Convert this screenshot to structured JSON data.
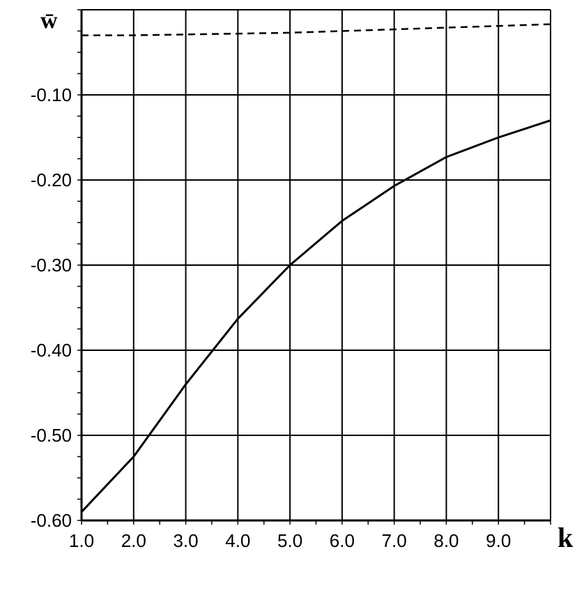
{
  "chart_data": {
    "type": "line",
    "title": "",
    "xlabel": "k",
    "ylabel": "w̄",
    "xlim": [
      1.0,
      10.0
    ],
    "ylim": [
      -0.6,
      0.0
    ],
    "grid": true,
    "legend": "none",
    "x_ticks": [
      {
        "value": 1.0,
        "label": "1.0"
      },
      {
        "value": 2.0,
        "label": "2.0"
      },
      {
        "value": 3.0,
        "label": "3.0"
      },
      {
        "value": 4.0,
        "label": "4.0"
      },
      {
        "value": 5.0,
        "label": "5.0"
      },
      {
        "value": 6.0,
        "label": "6.0"
      },
      {
        "value": 7.0,
        "label": "7.0"
      },
      {
        "value": 8.0,
        "label": "8.0"
      },
      {
        "value": 9.0,
        "label": "9.0"
      }
    ],
    "y_ticks": [
      {
        "value": -0.1,
        "label": "-0.10"
      },
      {
        "value": -0.2,
        "label": "-0.20"
      },
      {
        "value": -0.3,
        "label": "-0.30"
      },
      {
        "value": -0.4,
        "label": "-0.40"
      },
      {
        "value": -0.5,
        "label": "-0.50"
      },
      {
        "value": -0.6,
        "label": "-0.60"
      }
    ],
    "series": [
      {
        "style": "solid",
        "color": "#000000",
        "x": [
          1.0,
          2.0,
          3.0,
          4.0,
          5.0,
          6.0,
          7.0,
          8.0,
          9.0,
          10.0
        ],
        "y": [
          -0.59,
          -0.525,
          -0.44,
          -0.363,
          -0.3,
          -0.248,
          -0.207,
          -0.173,
          -0.15,
          -0.13
        ]
      },
      {
        "style": "dashed",
        "color": "#000000",
        "x": [
          1.0,
          2.0,
          3.0,
          4.0,
          5.0,
          6.0,
          7.0,
          8.0,
          9.0,
          10.0
        ],
        "y": [
          -0.03,
          -0.03,
          -0.029,
          -0.028,
          -0.027,
          -0.025,
          -0.023,
          -0.021,
          -0.019,
          -0.017
        ]
      }
    ]
  }
}
